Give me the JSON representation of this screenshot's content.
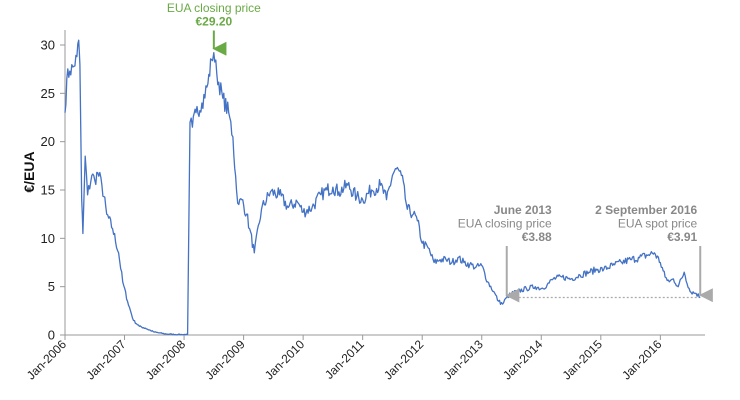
{
  "chart_data": {
    "type": "line",
    "ylabel": "€/EUA",
    "xlabel": "",
    "ylim": [
      0,
      30
    ],
    "yticks": [
      0,
      5,
      10,
      15,
      20,
      25,
      30
    ],
    "xticks": [
      "Jan-2006",
      "Jan-2007",
      "Jan-2008",
      "Jan-2009",
      "Jan-2010",
      "Jan-2011",
      "Jan-2012",
      "Jan-2013",
      "Jan-2014",
      "Jan-2015",
      "Jan-2016"
    ],
    "xrange": [
      2006.0,
      2016.75
    ],
    "grid": false,
    "line_color": "#4472c4",
    "series": [
      {
        "name": "",
        "x": [
          2006.0,
          2006.03,
          2006.08,
          2006.15,
          2006.2,
          2006.23,
          2006.25,
          2006.28,
          2006.3,
          2006.34,
          2006.38,
          2006.45,
          2006.5,
          2006.55,
          2006.62,
          2006.7,
          2006.8,
          2006.9,
          2006.97,
          2007.05,
          2007.15,
          2007.25,
          2007.35,
          2007.5,
          2007.7,
          2007.9,
          2008.0,
          2008.06,
          2008.1,
          2008.14,
          2008.2,
          2008.3,
          2008.4,
          2008.46,
          2008.5,
          2008.55,
          2008.65,
          2008.75,
          2008.82,
          2008.88,
          2008.92,
          2008.97,
          2009.05,
          2009.1,
          2009.18,
          2009.3,
          2009.45,
          2009.6,
          2009.75,
          2009.9,
          2010.0,
          2010.15,
          2010.3,
          2010.4,
          2010.5,
          2010.6,
          2010.75,
          2010.9,
          2011.0,
          2011.15,
          2011.3,
          2011.4,
          2011.5,
          2011.55,
          2011.65,
          2011.75,
          2011.85,
          2011.92,
          2012.0,
          2012.1,
          2012.2,
          2012.3,
          2012.4,
          2012.5,
          2012.6,
          2012.7,
          2012.8,
          2012.9,
          2013.0,
          2013.1,
          2013.2,
          2013.28,
          2013.35,
          2013.42,
          2013.5,
          2013.6,
          2013.75,
          2013.9,
          2014.0,
          2014.1,
          2014.2,
          2014.35,
          2014.5,
          2014.65,
          2014.8,
          2014.95,
          2015.05,
          2015.2,
          2015.35,
          2015.5,
          2015.65,
          2015.8,
          2015.9,
          2016.0,
          2016.08,
          2016.15,
          2016.22,
          2016.3,
          2016.4,
          2016.5,
          2016.6,
          2016.67
        ],
        "y": [
          23.0,
          26.5,
          27.3,
          27.8,
          28.8,
          30.5,
          28.0,
          14.0,
          10.5,
          18.5,
          14.5,
          16.5,
          16.0,
          16.8,
          15.5,
          12.5,
          11.0,
          8.5,
          5.5,
          3.5,
          1.5,
          0.9,
          0.7,
          0.3,
          0.1,
          0.05,
          0.05,
          0.05,
          22.0,
          21.5,
          23.0,
          24.0,
          26.0,
          28.5,
          29.2,
          27.0,
          24.5,
          23.0,
          20.5,
          15.0,
          13.5,
          14.0,
          12.5,
          11.0,
          8.5,
          13.0,
          14.8,
          14.5,
          13.2,
          13.8,
          12.7,
          13.2,
          14.5,
          15.0,
          15.3,
          14.8,
          15.5,
          14.3,
          14.0,
          15.0,
          15.5,
          14.0,
          16.5,
          17.2,
          16.5,
          13.0,
          12.5,
          11.8,
          9.5,
          9.0,
          7.5,
          7.8,
          7.8,
          7.5,
          8.0,
          7.5,
          7.3,
          7.0,
          7.2,
          5.5,
          4.5,
          3.5,
          3.2,
          3.9,
          4.3,
          4.5,
          4.8,
          5.0,
          4.8,
          5.2,
          5.8,
          6.0,
          5.8,
          6.2,
          6.5,
          6.8,
          6.8,
          7.2,
          7.5,
          7.8,
          8.0,
          8.3,
          8.5,
          7.5,
          6.0,
          5.5,
          5.8,
          5.0,
          6.5,
          4.5,
          4.3,
          3.91
        ]
      }
    ],
    "reference_line": {
      "value": 3.88,
      "x_start": 2013.42,
      "x_end": 2016.67,
      "style": "dotted",
      "color": "#aaaaaa"
    },
    "annotations": [
      {
        "lines": [
          "EUA closing price"
        ],
        "value_text": "€29.20",
        "x": 2008.5,
        "y": 29.2,
        "color": "#6aaa45",
        "arrow_color": "#6aaa45"
      },
      {
        "lines": [
          "June 2013",
          "EUA closing price"
        ],
        "value_text": "€3.88",
        "x": 2013.42,
        "y": 3.88,
        "color": "#888888",
        "arrow_color": "#aaaaaa"
      },
      {
        "lines": [
          "2 September 2016",
          "EUA spot price"
        ],
        "value_text": "€3.91",
        "x": 2016.67,
        "y": 3.91,
        "color": "#888888",
        "arrow_color": "#aaaaaa"
      }
    ]
  }
}
